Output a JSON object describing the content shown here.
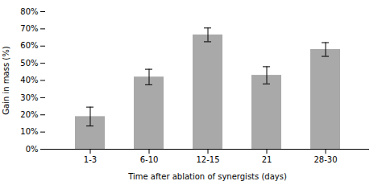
{
  "chart_data": {
    "type": "bar",
    "categories": [
      "1-3",
      "6-10",
      "12-15",
      "21",
      "28-30"
    ],
    "values": [
      19,
      42,
      66.5,
      43,
      58
    ],
    "errors": [
      5.5,
      4.5,
      4,
      5,
      4
    ],
    "color": "#a9a9a9",
    "xlabel": "Time after ablation of synergists (days)",
    "ylabel": "Gain in mass (%)",
    "ylim": [
      0,
      80
    ],
    "yticks": [
      {
        "value": 0,
        "label": "0%"
      },
      {
        "value": 10,
        "label": "10%"
      },
      {
        "value": 20,
        "label": "20%"
      },
      {
        "value": 30,
        "label": "30%"
      },
      {
        "value": 40,
        "label": "40%"
      },
      {
        "value": 50,
        "label": "50%"
      },
      {
        "value": 60,
        "label": "60%"
      },
      {
        "value": 70,
        "label": "70%"
      },
      {
        "value": 80,
        "label": "80%"
      }
    ],
    "grid": false
  }
}
